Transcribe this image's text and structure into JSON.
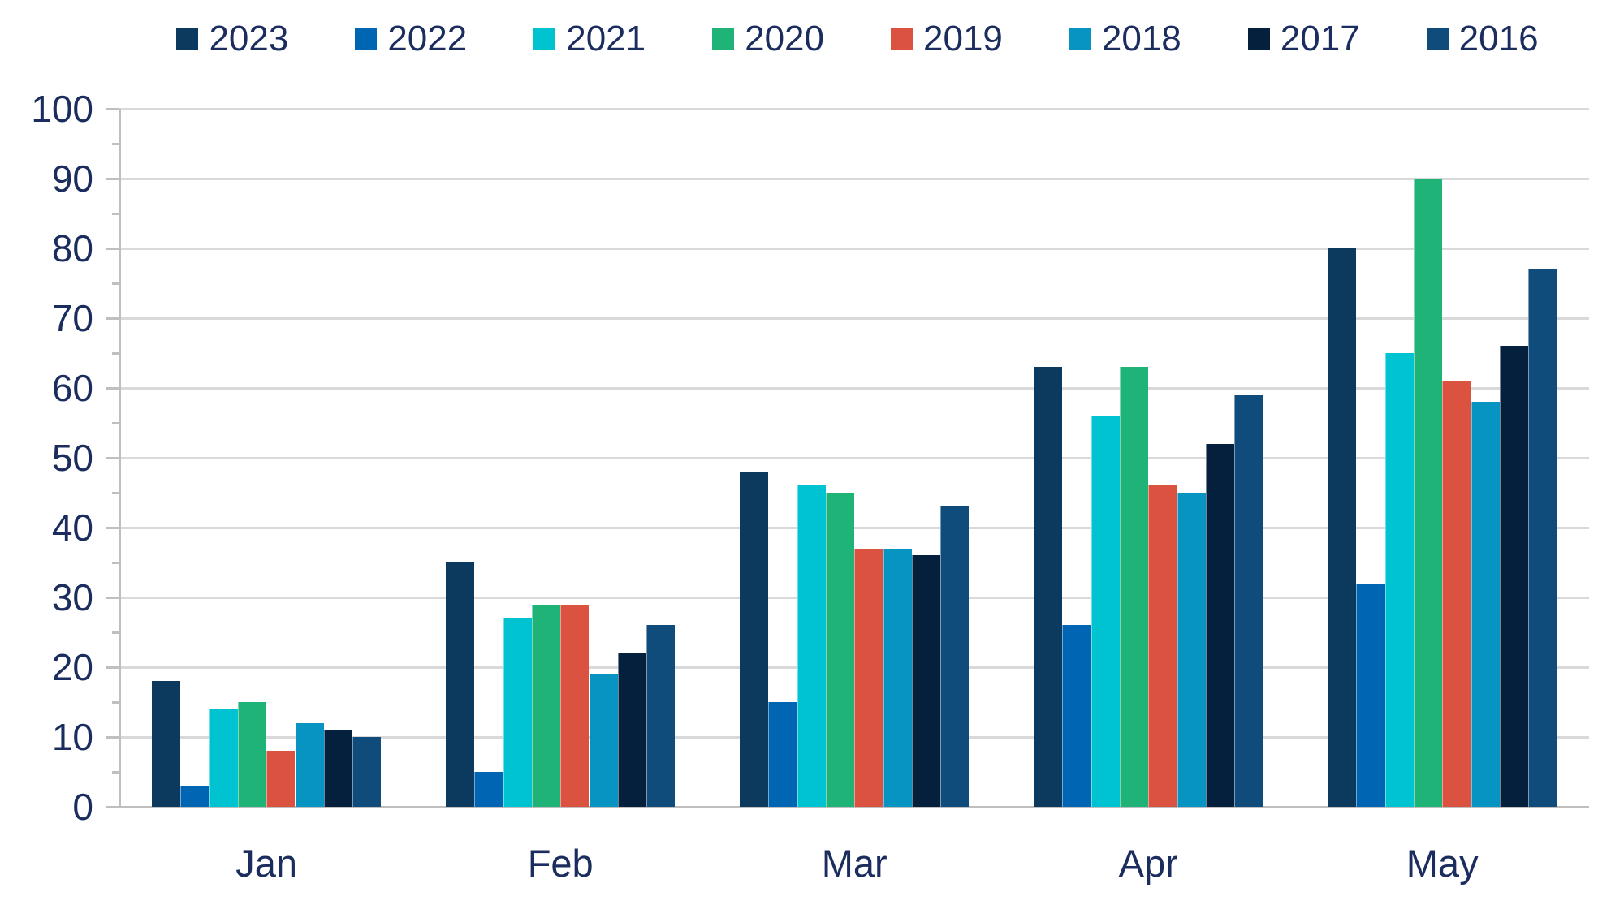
{
  "chart_data": {
    "type": "bar",
    "title": "",
    "xlabel": "",
    "ylabel": "",
    "categories": [
      "Jan",
      "Feb",
      "Mar",
      "Apr",
      "May"
    ],
    "series": [
      {
        "name": "2023",
        "color": "#0C3A5F",
        "values": [
          18,
          35,
          48,
          63,
          80
        ]
      },
      {
        "name": "2022",
        "color": "#0065B3",
        "values": [
          3,
          5,
          15,
          26,
          32
        ]
      },
      {
        "name": "2021",
        "color": "#00C3D2",
        "values": [
          14,
          27,
          46,
          56,
          65
        ]
      },
      {
        "name": "2020",
        "color": "#1FB377",
        "values": [
          15,
          29,
          45,
          63,
          90
        ]
      },
      {
        "name": "2019",
        "color": "#DC5240",
        "values": [
          8,
          29,
          37,
          46,
          61
        ]
      },
      {
        "name": "2018",
        "color": "#0794C3",
        "values": [
          12,
          19,
          37,
          45,
          58
        ]
      },
      {
        "name": "2017",
        "color": "#04203C",
        "values": [
          11,
          22,
          36,
          52,
          66
        ]
      },
      {
        "name": "2016",
        "color": "#0F4C7C",
        "values": [
          10,
          26,
          43,
          59,
          77
        ]
      }
    ],
    "ylim": [
      0,
      100
    ],
    "ytick_step": 10,
    "yminor_tick_step": 5,
    "ytick_labels": [
      "0",
      "10",
      "20",
      "30",
      "40",
      "50",
      "60",
      "70",
      "80",
      "90",
      "100"
    ],
    "legend_position": "top",
    "legend_order": [
      "2023",
      "2022",
      "2021",
      "2020",
      "2019",
      "2018",
      "2017",
      "2016"
    ],
    "grid": true,
    "grid_color": "#D9D9D9",
    "axis_color": "#BFBFBF",
    "label_color": "#1B2D5E",
    "background_color": "#FFFFFF"
  }
}
